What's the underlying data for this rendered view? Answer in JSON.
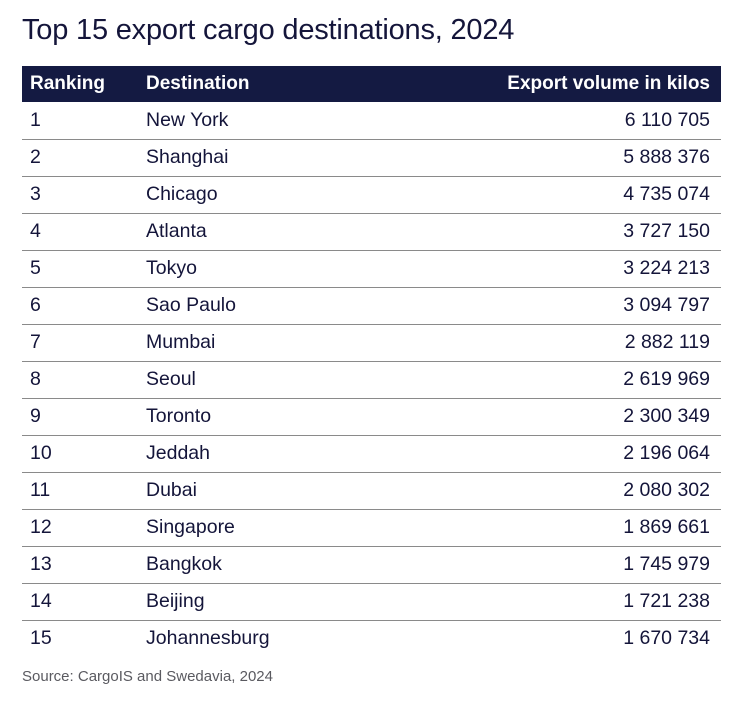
{
  "title": "Top 15 export cargo destinations, 2024",
  "table": {
    "headers": {
      "ranking": "Ranking",
      "destination": "Destination",
      "volume": "Export volume in kilos"
    },
    "rows": [
      {
        "ranking": "1",
        "destination": "New York",
        "volume": "6 110 705"
      },
      {
        "ranking": "2",
        "destination": "Shanghai",
        "volume": "5 888 376"
      },
      {
        "ranking": "3",
        "destination": "Chicago",
        "volume": "4 735 074"
      },
      {
        "ranking": "4",
        "destination": "Atlanta",
        "volume": "3 727 150"
      },
      {
        "ranking": "5",
        "destination": "Tokyo",
        "volume": "3 224 213"
      },
      {
        "ranking": "6",
        "destination": "Sao Paulo",
        "volume": "3 094 797"
      },
      {
        "ranking": "7",
        "destination": "Mumbai",
        "volume": "2 882 119"
      },
      {
        "ranking": "8",
        "destination": "Seoul",
        "volume": "2 619 969"
      },
      {
        "ranking": "9",
        "destination": "Toronto",
        "volume": "2 300 349"
      },
      {
        "ranking": "10",
        "destination": "Jeddah",
        "volume": "2 196 064"
      },
      {
        "ranking": "11",
        "destination": "Dubai",
        "volume": "2 080 302"
      },
      {
        "ranking": "12",
        "destination": "Singapore",
        "volume": "1 869 661"
      },
      {
        "ranking": "13",
        "destination": "Bangkok",
        "volume": "1 745 979"
      },
      {
        "ranking": "14",
        "destination": "Beijing",
        "volume": "1 721 238"
      },
      {
        "ranking": "15",
        "destination": "Johannesburg",
        "volume": "1 670 734"
      }
    ]
  },
  "source": "Source: CargoIS and Swedavia, 2024",
  "colors": {
    "header_background": "#141a42",
    "header_text": "#ffffff",
    "body_text": "#14153a",
    "row_divider": "#8a8a8a",
    "source_text": "#5a5a60"
  }
}
